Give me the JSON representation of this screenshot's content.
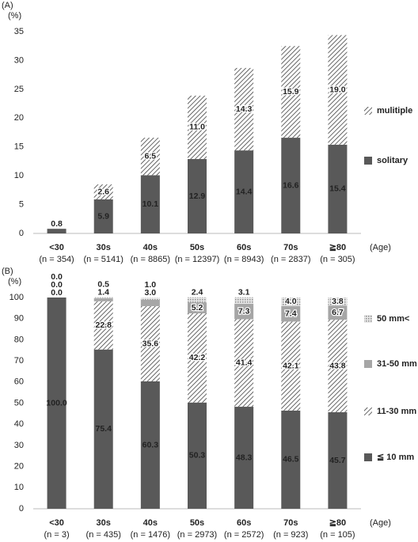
{
  "chart_data": [
    {
      "type": "stacked-bar",
      "title": "(A)",
      "y_label": "(%)",
      "x_label": "(Age)",
      "categories": [
        "<30",
        "30s",
        "40s",
        "50s",
        "60s",
        "70s",
        "≧80"
      ],
      "sample_sizes": [
        "(n = 354)",
        "(n = 5141)",
        "(n = 8865)",
        "(n = 12397)",
        "(n = 8943)",
        "(n = 2837)",
        "(n = 305)"
      ],
      "ylim": [
        0,
        35
      ],
      "yticks": [
        0,
        5,
        10,
        15,
        20,
        25,
        30,
        35
      ],
      "grid": false,
      "legend": "right",
      "series": [
        {
          "name": "solitary",
          "color": "#595959",
          "pattern": "solid",
          "values": [
            0.8,
            5.9,
            10.1,
            12.9,
            14.4,
            16.6,
            15.4
          ],
          "value_labels": [
            "0.8",
            "5.9",
            "10.1",
            "12.9",
            "14.4",
            "16.6",
            "15.4"
          ]
        },
        {
          "name": "mulitiple",
          "color": "#404040",
          "pattern": "hatch",
          "values": [
            null,
            2.6,
            6.5,
            11.0,
            14.3,
            15.9,
            19.0
          ],
          "value_labels": [
            null,
            "2.6",
            "6.5",
            "11.0",
            "14.3",
            "15.9",
            "19.0"
          ]
        }
      ]
    },
    {
      "type": "stacked-bar",
      "title": "(B)",
      "y_label": "(%)",
      "x_label": "(Age)",
      "categories": [
        "<30",
        "30s",
        "40s",
        "50s",
        "60s",
        "70s",
        "≧80"
      ],
      "sample_sizes": [
        "(n = 3)",
        "(n = 435)",
        "(n = 1476)",
        "(n = 2973)",
        "(n = 2572)",
        "(n = 923)",
        "(n = 105)"
      ],
      "ylim": [
        0,
        100
      ],
      "yticks": [
        0,
        10,
        20,
        30,
        40,
        50,
        60,
        70,
        80,
        90,
        100
      ],
      "grid": false,
      "legend": "right",
      "series": [
        {
          "name": "≦ 10 mm",
          "color": "#595959",
          "pattern": "solid",
          "values": [
            100.0,
            75.4,
            60.3,
            50.3,
            48.3,
            46.5,
            45.7
          ],
          "value_labels": [
            "100.0",
            "75.4",
            "60.3",
            "50.3",
            "48.3",
            "46.5",
            "45.7"
          ]
        },
        {
          "name": "11-30 mm",
          "color": "#404040",
          "pattern": "hatch",
          "values": [
            0.0,
            22.8,
            35.6,
            42.2,
            41.4,
            42.1,
            43.8
          ],
          "value_labels": [
            "0.0",
            "22.8",
            "35.6",
            "42.2",
            "41.4",
            "42.1",
            "43.8"
          ]
        },
        {
          "name": "31-50 mm",
          "color": "#a6a6a6",
          "pattern": "solid",
          "values": [
            0.0,
            1.4,
            3.0,
            5.2,
            7.3,
            7.4,
            6.7
          ],
          "value_labels": [
            "0.0",
            "1.4",
            "3.0",
            "5.2",
            "7.3",
            "7.4",
            "6.7"
          ]
        },
        {
          "name": "50 mm<",
          "color": "#9a9a9a",
          "pattern": "dots",
          "values": [
            0.0,
            0.5,
            1.0,
            2.4,
            3.1,
            4.0,
            3.8
          ],
          "value_labels": [
            "0.0",
            "0.5",
            "1.0",
            "2.4",
            "3.1",
            "4.0",
            "3.8"
          ]
        }
      ]
    }
  ]
}
